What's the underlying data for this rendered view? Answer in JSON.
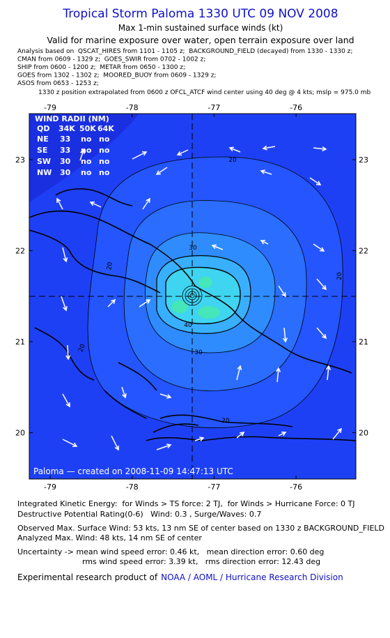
{
  "header": {
    "title": "Tropical Storm Paloma 1330 UTC 09 NOV 2008",
    "subtitle": "Max 1-min sustained surface winds (kt)",
    "valid": "Valid for marine exposure over water, open terrain exposure over land",
    "analysis": [
      "Analysis based on  QSCAT_HIRES from 1101 - 1105 z;  BACKGROUND_FIELD (decayed) from 1330 - 1330 z;",
      "CMAN from 0609 - 1329 z;  GOES_SWIR from 0702 - 1002 z;",
      "SHIP from 0600 - 1200 z;  METAR from 0650 - 1300 z;",
      "GOES from 1302 - 1302 z;  MOORED_BUOY from 0609 - 1329 z;",
      "ASOS from 0653 - 1253 z;"
    ],
    "position_note": "1330 z position extrapolated from 0600 z OFCL_ATCF wind center using 40 deg @ 4 kts; mslp = 975.0 mb"
  },
  "map": {
    "lon_ticks": [
      -79,
      -78,
      -77,
      -76
    ],
    "lat_ticks": [
      23,
      22,
      21,
      20
    ],
    "contour_labels": [
      "20",
      "20",
      "20",
      "20",
      "20",
      "30",
      "30",
      "40"
    ],
    "wind_radii": {
      "title": "WIND RADII (NM)",
      "header": [
        "QD",
        "34K",
        "50K",
        "64K"
      ],
      "rows": [
        [
          "NE",
          "33",
          "no",
          "no"
        ],
        [
          "SE",
          "33",
          "no",
          "no"
        ],
        [
          "SW",
          "30",
          "no",
          "no"
        ],
        [
          "NW",
          "30",
          "no",
          "no"
        ]
      ]
    },
    "credit": "Paloma — created on 2008-11-09 14:47:13 UTC"
  },
  "footer": {
    "lines": [
      "Integrated Kinetic Energy:  for Winds > TS force: 2 TJ,  for Winds > Hurricane Force: 0 TJ",
      "Destructive Potential Rating(0-6)   Wind: 0.3 , Surge/Waves: 0.7",
      "Observed Max. Surface Wind: 53 kts, 13 nm SE of center based on 1330 z BACKGROUND_FIELD",
      "Analyzed Max. Wind: 48 kts, 14 nm SE of center",
      "Uncertainty -> mean wind speed error: 0.46 kt,   mean direction error: 0.60 deg",
      "rms wind speed error: 3.39 kt,   rms direction error: 12.43 deg"
    ],
    "credit_prefix": "Experimental research product of",
    "credit_link": "NOAA / AOML / Hurricane Research Division"
  }
}
